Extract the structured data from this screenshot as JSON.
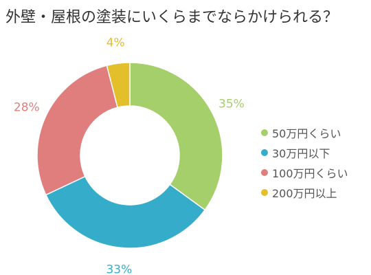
{
  "chart_data": {
    "type": "pie",
    "variant": "donut",
    "title": "外壁・屋根の塗装にいくらまでならかけられる？",
    "series": [
      {
        "label": "50万円くらい",
        "value": 35,
        "display": "35%",
        "color": "#a4cf6a"
      },
      {
        "label": "30万円以下",
        "value": 33,
        "display": "33%",
        "color": "#35acc9"
      },
      {
        "label": "100万円くらい",
        "value": 28,
        "display": "28%",
        "color": "#e07e7e"
      },
      {
        "label": "200万円以上",
        "value": 4,
        "display": "4%",
        "color": "#e3bf2b"
      }
    ],
    "legend_position": "right"
  }
}
